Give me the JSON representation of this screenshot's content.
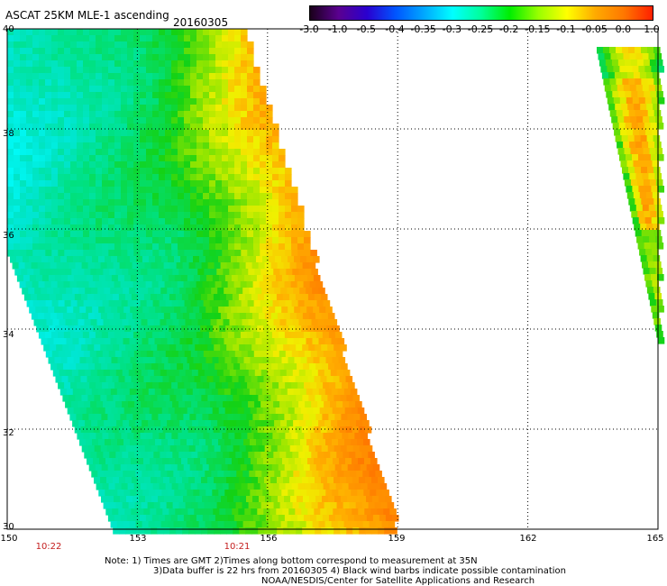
{
  "header": {
    "title": "ASCAT 25KM MLE-1 ascending",
    "date": "20160305"
  },
  "colorbar": {
    "labels": [
      "-3.0",
      "-1.0",
      "-0.5",
      "-0.4",
      "-0.35",
      "-0.3",
      "-0.25",
      "-0.2",
      "-0.15",
      "-0.1",
      "-0.05",
      "0.0",
      "1.0"
    ],
    "colors": [
      "#1a001a",
      "#5a0090",
      "#2a00d0",
      "#0055ff",
      "#00a8ff",
      "#00ffff",
      "#00ff99",
      "#00ee00",
      "#99ff00",
      "#ffff00",
      "#ffaa00",
      "#ff7700",
      "#ff2000"
    ]
  },
  "map": {
    "lat_labels": [
      "40",
      "38",
      "36",
      "34",
      "32",
      "30"
    ],
    "lon_labels": [
      "150",
      "153",
      "156",
      "159",
      "162",
      "165"
    ],
    "lat_range": [
      30,
      40
    ],
    "lon_range": [
      150,
      165
    ],
    "time_labels": [
      "10:22",
      "10:21"
    ],
    "grid": "dotted"
  },
  "notes": {
    "line1": "Note: 1) Times are GMT 2)Times along bottom correspond to measurement at 35N",
    "line2": "3)Data buffer is 22 hrs from 20160305 4) Black wind barbs indicate possible contamination",
    "line3": "NOAA/NESDIS/Center for Satellite Applications and Research"
  }
}
